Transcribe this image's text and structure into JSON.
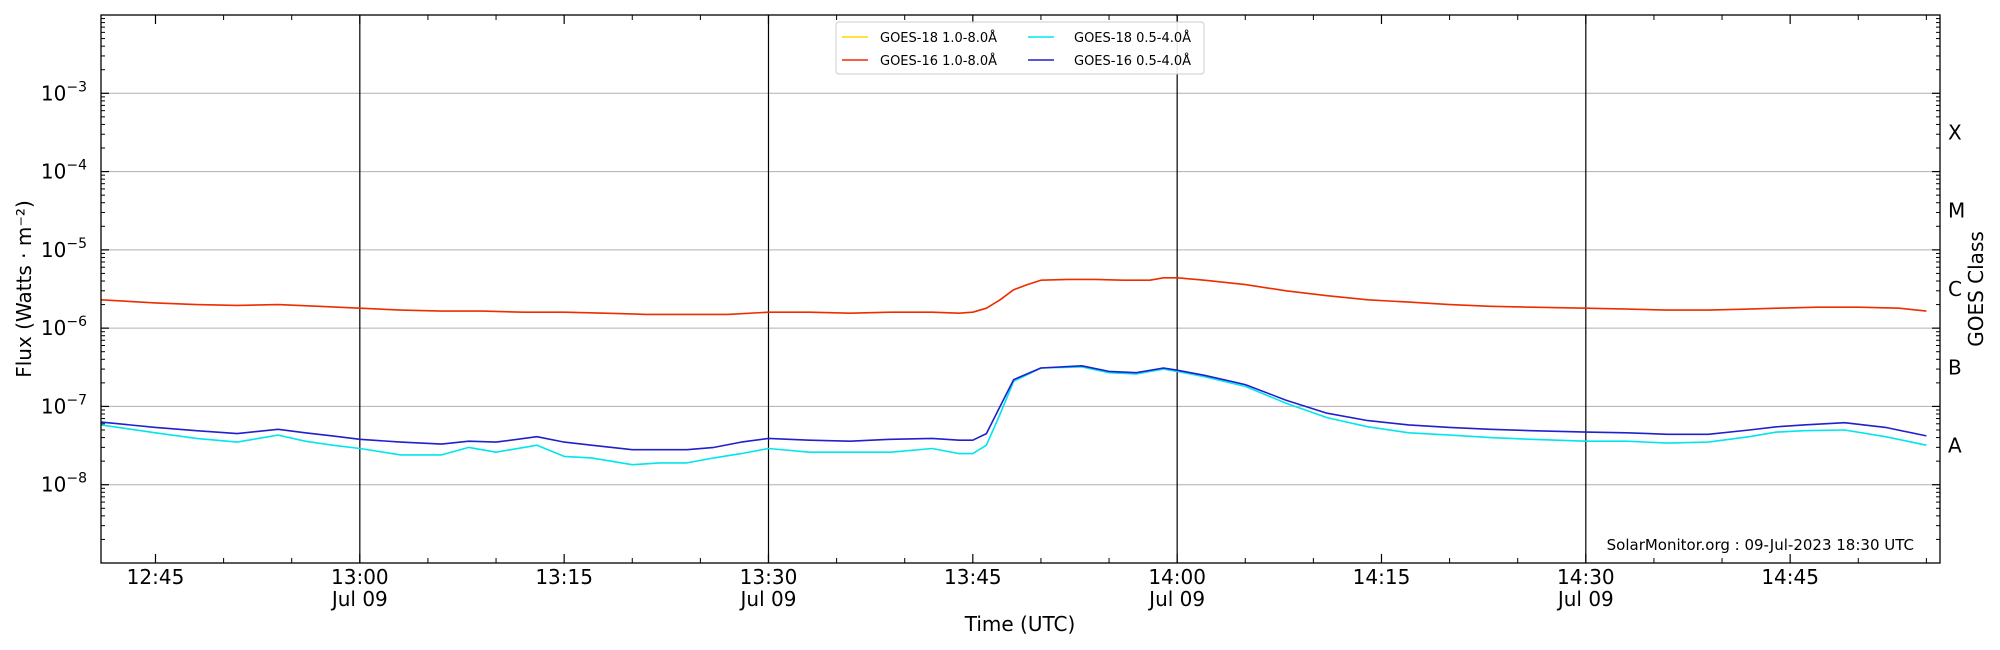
{
  "chart_data": {
    "type": "line",
    "xlabel": "Time (UTC)",
    "ylabel": "Flux (Watts · m⁻²)",
    "right_label": "GOES Class",
    "credit": "SolarMonitor.org : 09-Jul-2023 18:30 UTC",
    "yscale": "log",
    "ylim": [
      1e-09,
      0.01
    ],
    "xlim": [
      "12:41",
      "14:56"
    ],
    "grid_y": true,
    "legend_position": "top-center",
    "y_ticks": [
      {
        "value": 1e-08,
        "base": "10",
        "exp": "−8"
      },
      {
        "value": 1e-07,
        "base": "10",
        "exp": "−7"
      },
      {
        "value": 1e-06,
        "base": "10",
        "exp": "−6"
      },
      {
        "value": 1e-05,
        "base": "10",
        "exp": "−5"
      },
      {
        "value": 0.0001,
        "base": "10",
        "exp": "−4"
      },
      {
        "value": 0.001,
        "base": "10",
        "exp": "−3"
      }
    ],
    "x_ticks": [
      {
        "time": "12:45",
        "label": "12:45",
        "date": ""
      },
      {
        "time": "13:00",
        "label": "13:00",
        "date": "Jul 09"
      },
      {
        "time": "13:15",
        "label": "13:15",
        "date": ""
      },
      {
        "time": "13:30",
        "label": "13:30",
        "date": "Jul 09"
      },
      {
        "time": "13:45",
        "label": "13:45",
        "date": ""
      },
      {
        "time": "14:00",
        "label": "14:00",
        "date": "Jul 09"
      },
      {
        "time": "14:15",
        "label": "14:15",
        "date": ""
      },
      {
        "time": "14:30",
        "label": "14:30",
        "date": "Jul 09"
      },
      {
        "time": "14:45",
        "label": "14:45",
        "date": ""
      }
    ],
    "vertical_lines": [
      "13:00",
      "13:30",
      "14:00",
      "14:30"
    ],
    "goes_classes": [
      {
        "label": "A",
        "flux": 1e-08
      },
      {
        "label": "B",
        "flux": 1e-07
      },
      {
        "label": "C",
        "flux": 1e-06
      },
      {
        "label": "M",
        "flux": 1e-05
      },
      {
        "label": "X",
        "flux": 0.0001
      }
    ],
    "series": [
      {
        "name": "GOES-18 1.0-8.0Å",
        "color": "#ffd700",
        "x": [],
        "y": []
      },
      {
        "name": "GOES-18 0.5-4.0Å",
        "color": "#00e5ee",
        "x": [
          "12:41",
          "12:45",
          "12:48",
          "12:51",
          "12:54",
          "12:56",
          "12:58",
          "13:00",
          "13:03",
          "13:06",
          "13:08",
          "13:10",
          "13:13",
          "13:15",
          "13:17",
          "13:20",
          "13:22",
          "13:24",
          "13:26",
          "13:28",
          "13:30",
          "13:33",
          "13:36",
          "13:39",
          "13:42",
          "13:44",
          "13:45",
          "13:46",
          "13:47",
          "13:48",
          "13:50",
          "13:53",
          "13:55",
          "13:57",
          "13:59",
          "14:00",
          "14:02",
          "14:05",
          "14:08",
          "14:11",
          "14:14",
          "14:17",
          "14:20",
          "14:23",
          "14:26",
          "14:30",
          "14:33",
          "14:36",
          "14:39",
          "14:42",
          "14:44",
          "14:46",
          "14:49",
          "14:52",
          "14:55"
        ],
        "y": [
          5.8e-08,
          4.6e-08,
          3.9e-08,
          3.5e-08,
          4.3e-08,
          3.6e-08,
          3.2e-08,
          2.9e-08,
          2.4e-08,
          2.4e-08,
          3e-08,
          2.6e-08,
          3.2e-08,
          2.3e-08,
          2.2e-08,
          1.8e-08,
          1.9e-08,
          1.9e-08,
          2.2e-08,
          2.5e-08,
          2.9e-08,
          2.6e-08,
          2.6e-08,
          2.6e-08,
          2.9e-08,
          2.5e-08,
          2.5e-08,
          3.2e-08,
          8e-08,
          2.1e-07,
          3.1e-07,
          3.2e-07,
          2.7e-07,
          2.6e-07,
          3e-07,
          2.8e-07,
          2.4e-07,
          1.8e-07,
          1.1e-07,
          7.2e-08,
          5.5e-08,
          4.6e-08,
          4.3e-08,
          4e-08,
          3.8e-08,
          3.6e-08,
          3.6e-08,
          3.4e-08,
          3.5e-08,
          4.1e-08,
          4.7e-08,
          4.9e-08,
          5e-08,
          4.1e-08,
          3.2e-08
        ]
      },
      {
        "name": "GOES-16 1.0-8.0Å",
        "color": "#ee2c00",
        "x": [
          "12:41",
          "12:45",
          "12:48",
          "12:51",
          "12:54",
          "12:57",
          "13:00",
          "13:03",
          "13:06",
          "13:09",
          "13:12",
          "13:15",
          "13:18",
          "13:21",
          "13:24",
          "13:27",
          "13:30",
          "13:33",
          "13:36",
          "13:39",
          "13:42",
          "13:44",
          "13:45",
          "13:46",
          "13:47",
          "13:48",
          "13:49",
          "13:50",
          "13:52",
          "13:54",
          "13:56",
          "13:58",
          "13:59",
          "14:00",
          "14:02",
          "14:05",
          "14:08",
          "14:11",
          "14:14",
          "14:17",
          "14:20",
          "14:23",
          "14:26",
          "14:30",
          "14:33",
          "14:36",
          "14:39",
          "14:42",
          "14:44",
          "14:47",
          "14:50",
          "14:53",
          "14:55"
        ],
        "y": [
          2.3e-06,
          2.1e-06,
          2e-06,
          1.95e-06,
          2e-06,
          1.9e-06,
          1.8e-06,
          1.7e-06,
          1.65e-06,
          1.65e-06,
          1.6e-06,
          1.6e-06,
          1.55e-06,
          1.5e-06,
          1.5e-06,
          1.5e-06,
          1.6e-06,
          1.6e-06,
          1.55e-06,
          1.6e-06,
          1.6e-06,
          1.55e-06,
          1.6e-06,
          1.8e-06,
          2.3e-06,
          3.1e-06,
          3.6e-06,
          4.1e-06,
          4.2e-06,
          4.2e-06,
          4.1e-06,
          4.1e-06,
          4.4e-06,
          4.4e-06,
          4.1e-06,
          3.6e-06,
          3e-06,
          2.6e-06,
          2.3e-06,
          2.15e-06,
          2e-06,
          1.9e-06,
          1.85e-06,
          1.8e-06,
          1.75e-06,
          1.7e-06,
          1.7e-06,
          1.75e-06,
          1.8e-06,
          1.85e-06,
          1.85e-06,
          1.8e-06,
          1.65e-06
        ]
      },
      {
        "name": "GOES-16 0.5-4.0Å",
        "color": "#2020cc",
        "x": [
          "12:41",
          "12:45",
          "12:48",
          "12:51",
          "12:54",
          "12:56",
          "12:58",
          "13:00",
          "13:03",
          "13:06",
          "13:08",
          "13:10",
          "13:13",
          "13:15",
          "13:17",
          "13:20",
          "13:22",
          "13:24",
          "13:26",
          "13:28",
          "13:30",
          "13:33",
          "13:36",
          "13:39",
          "13:42",
          "13:44",
          "13:45",
          "13:46",
          "13:47",
          "13:48",
          "13:50",
          "13:53",
          "13:55",
          "13:57",
          "13:59",
          "14:00",
          "14:02",
          "14:05",
          "14:08",
          "14:11",
          "14:14",
          "14:17",
          "14:20",
          "14:23",
          "14:26",
          "14:30",
          "14:33",
          "14:36",
          "14:39",
          "14:42",
          "14:44",
          "14:46",
          "14:49",
          "14:52",
          "14:55"
        ],
        "y": [
          6.3e-08,
          5.4e-08,
          4.9e-08,
          4.5e-08,
          5.1e-08,
          4.6e-08,
          4.2e-08,
          3.8e-08,
          3.5e-08,
          3.3e-08,
          3.6e-08,
          3.5e-08,
          4.1e-08,
          3.5e-08,
          3.2e-08,
          2.8e-08,
          2.8e-08,
          2.8e-08,
          3e-08,
          3.5e-08,
          3.9e-08,
          3.7e-08,
          3.6e-08,
          3.8e-08,
          3.9e-08,
          3.7e-08,
          3.7e-08,
          4.5e-08,
          1e-07,
          2.2e-07,
          3.1e-07,
          3.3e-07,
          2.8e-07,
          2.7e-07,
          3.1e-07,
          2.9e-07,
          2.5e-07,
          1.9e-07,
          1.2e-07,
          8.2e-08,
          6.6e-08,
          5.8e-08,
          5.4e-08,
          5.1e-08,
          4.9e-08,
          4.7e-08,
          4.6e-08,
          4.4e-08,
          4.4e-08,
          5e-08,
          5.5e-08,
          5.8e-08,
          6.2e-08,
          5.4e-08,
          4.2e-08
        ]
      }
    ]
  }
}
